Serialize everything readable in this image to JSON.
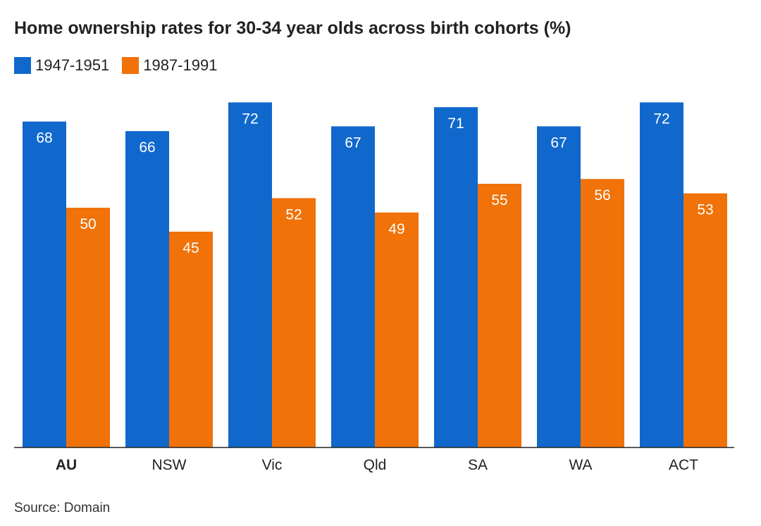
{
  "title": "Home ownership rates for 30-34 year olds across birth cohorts (%)",
  "source": "Source: Domain",
  "chart_data": {
    "type": "bar",
    "title": "Home ownership rates for 30-34 year olds across birth cohorts (%)",
    "xlabel": "",
    "ylabel": "",
    "ylim": [
      0,
      75
    ],
    "grid": false,
    "legend_position": "top-left",
    "categories": [
      "AU",
      "NSW",
      "Vic",
      "Qld",
      "SA",
      "WA",
      "ACT"
    ],
    "bold_categories": [
      "AU"
    ],
    "series": [
      {
        "name": "1947-1951",
        "color": "#1068CC",
        "values": [
          68,
          66,
          72,
          67,
          71,
          67,
          72
        ]
      },
      {
        "name": "1987-1991",
        "color": "#F07208",
        "values": [
          50,
          45,
          52,
          49,
          55,
          56,
          53
        ]
      }
    ]
  }
}
